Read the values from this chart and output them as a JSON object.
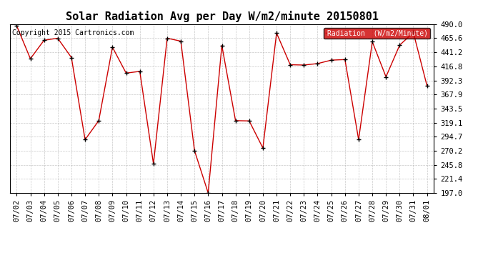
{
  "title": "Solar Radiation Avg per Day W/m2/minute 20150801",
  "copyright": "Copyright 2015 Cartronics.com",
  "legend_label": "Radiation  (W/m2/Minute)",
  "dates": [
    "07/02",
    "07/03",
    "07/04",
    "07/05",
    "07/06",
    "07/07",
    "07/08",
    "07/09",
    "07/10",
    "07/11",
    "07/12",
    "07/13",
    "07/14",
    "07/15",
    "07/16",
    "07/17",
    "07/18",
    "07/19",
    "07/20",
    "07/21",
    "07/22",
    "07/23",
    "07/24",
    "07/25",
    "07/26",
    "07/27",
    "07/28",
    "07/29",
    "07/30",
    "07/31",
    "08/01"
  ],
  "values": [
    487.0,
    430.0,
    462.0,
    465.5,
    432.0,
    289.5,
    322.5,
    450.0,
    405.0,
    408.0,
    247.5,
    465.5,
    460.5,
    270.5,
    197.0,
    453.0,
    322.5,
    322.0,
    275.0,
    474.5,
    419.5,
    419.0,
    421.5,
    427.5,
    428.5,
    289.5,
    459.5,
    398.5,
    453.5,
    475.5,
    383.0
  ],
  "ylim_min": 197.0,
  "ylim_max": 490.0,
  "ytick_values": [
    490.0,
    465.6,
    441.2,
    416.8,
    392.3,
    367.9,
    343.5,
    319.1,
    294.7,
    270.2,
    245.8,
    221.4,
    197.0
  ],
  "ytick_labels": [
    "490.0",
    "465.6",
    "441.2",
    "416.8",
    "392.3",
    "367.9",
    "343.5",
    "319.1",
    "294.7",
    "270.2",
    "245.8",
    "221.4",
    "197.0"
  ],
  "line_color": "#cc0000",
  "marker_color": "#000000",
  "bg_color": "#ffffff",
  "grid_color": "#b0b0b0",
  "legend_bg": "#cc0000",
  "legend_text_color": "#ffffff",
  "title_fontsize": 11,
  "tick_fontsize": 7.5,
  "copyright_fontsize": 7
}
